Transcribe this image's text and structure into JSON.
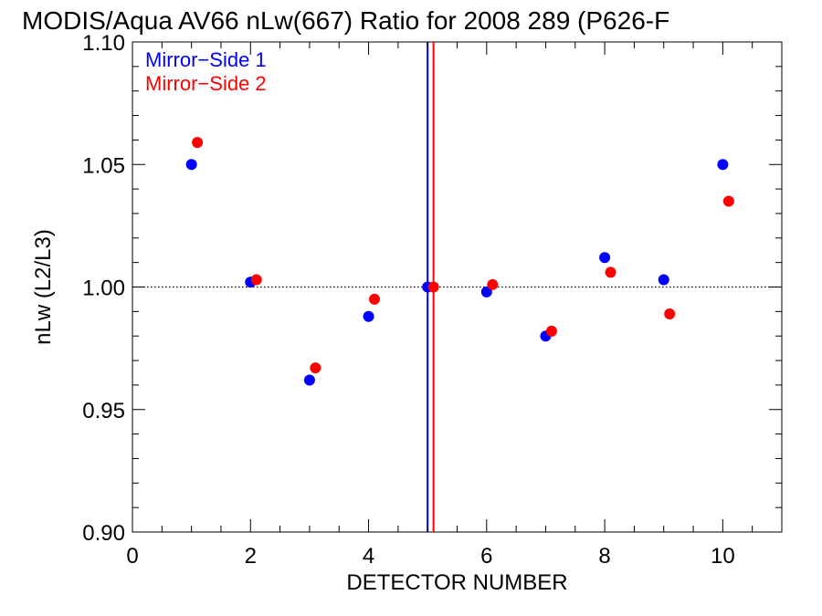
{
  "chart_data": {
    "type": "scatter",
    "title": "MODIS/Aqua AV66 nLw(667) Ratio for 2008 289 (P626-F",
    "xlabel": "DETECTOR NUMBER",
    "ylabel": "nLw (L2/L3)",
    "xlim": [
      0,
      11
    ],
    "ylim": [
      0.9,
      1.1
    ],
    "x_ticks": [
      0,
      2,
      4,
      6,
      8,
      10
    ],
    "x_tick_labels": [
      "0",
      "2",
      "4",
      "6",
      "8",
      "10"
    ],
    "y_ticks": [
      0.9,
      0.95,
      1.0,
      1.05,
      1.1
    ],
    "y_tick_labels": [
      "0.90",
      "0.95",
      "1.00",
      "1.05",
      "1.10"
    ],
    "reference_line": {
      "y": 1.0,
      "style": "dotted",
      "color": "#000000"
    },
    "vertical_lines": [
      {
        "x": 5.0,
        "color": "#0000ff"
      },
      {
        "x": 5.1,
        "color": "#ff0000"
      }
    ],
    "legend_position": "top-left",
    "series": [
      {
        "name": "Mirror−Side 1",
        "color": "#0000ff",
        "x": [
          1,
          2,
          3,
          4,
          5,
          6,
          7,
          8,
          9,
          10
        ],
        "values": [
          1.05,
          1.002,
          0.962,
          0.988,
          1.0,
          0.998,
          0.98,
          1.012,
          1.003,
          1.05
        ]
      },
      {
        "name": "Mirror−Side 2",
        "color": "#ff0000",
        "x": [
          1.1,
          2.1,
          3.1,
          4.1,
          5.1,
          6.1,
          7.1,
          8.1,
          9.1,
          10.1
        ],
        "values": [
          1.059,
          1.003,
          0.967,
          0.995,
          1.0,
          1.001,
          0.982,
          1.006,
          0.989,
          1.035
        ]
      }
    ]
  }
}
